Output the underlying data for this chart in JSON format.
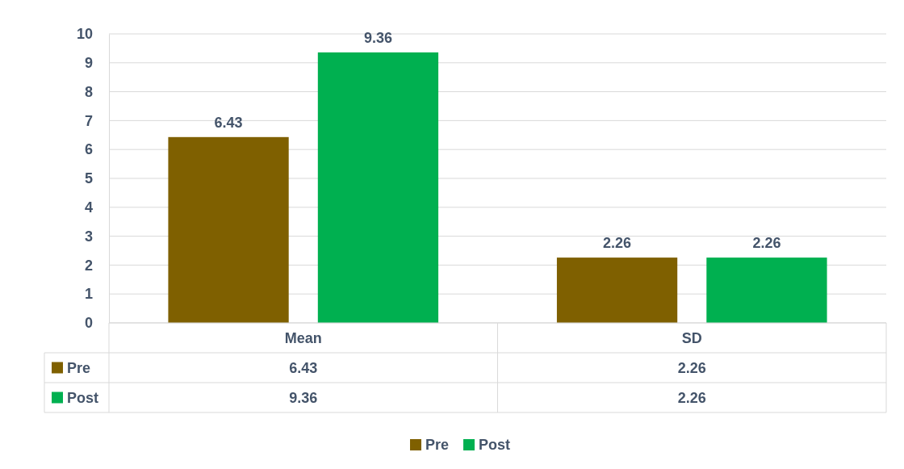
{
  "chart_data": {
    "type": "bar",
    "categories": [
      "Mean",
      "SD"
    ],
    "series": [
      {
        "name": "Pre",
        "color": "#7f6000",
        "values": [
          6.43,
          2.26
        ]
      },
      {
        "name": "Post",
        "color": "#00b050",
        "values": [
          9.36,
          2.26
        ]
      }
    ],
    "annotations": [
      "6.43",
      "9.36",
      "2.26",
      "2.26"
    ],
    "ylim": [
      0,
      10
    ],
    "yticks": [
      0,
      1,
      2,
      3,
      4,
      5,
      6,
      7,
      8,
      9,
      10
    ],
    "grid": "y",
    "data_labels": true,
    "legend": "bottom"
  }
}
